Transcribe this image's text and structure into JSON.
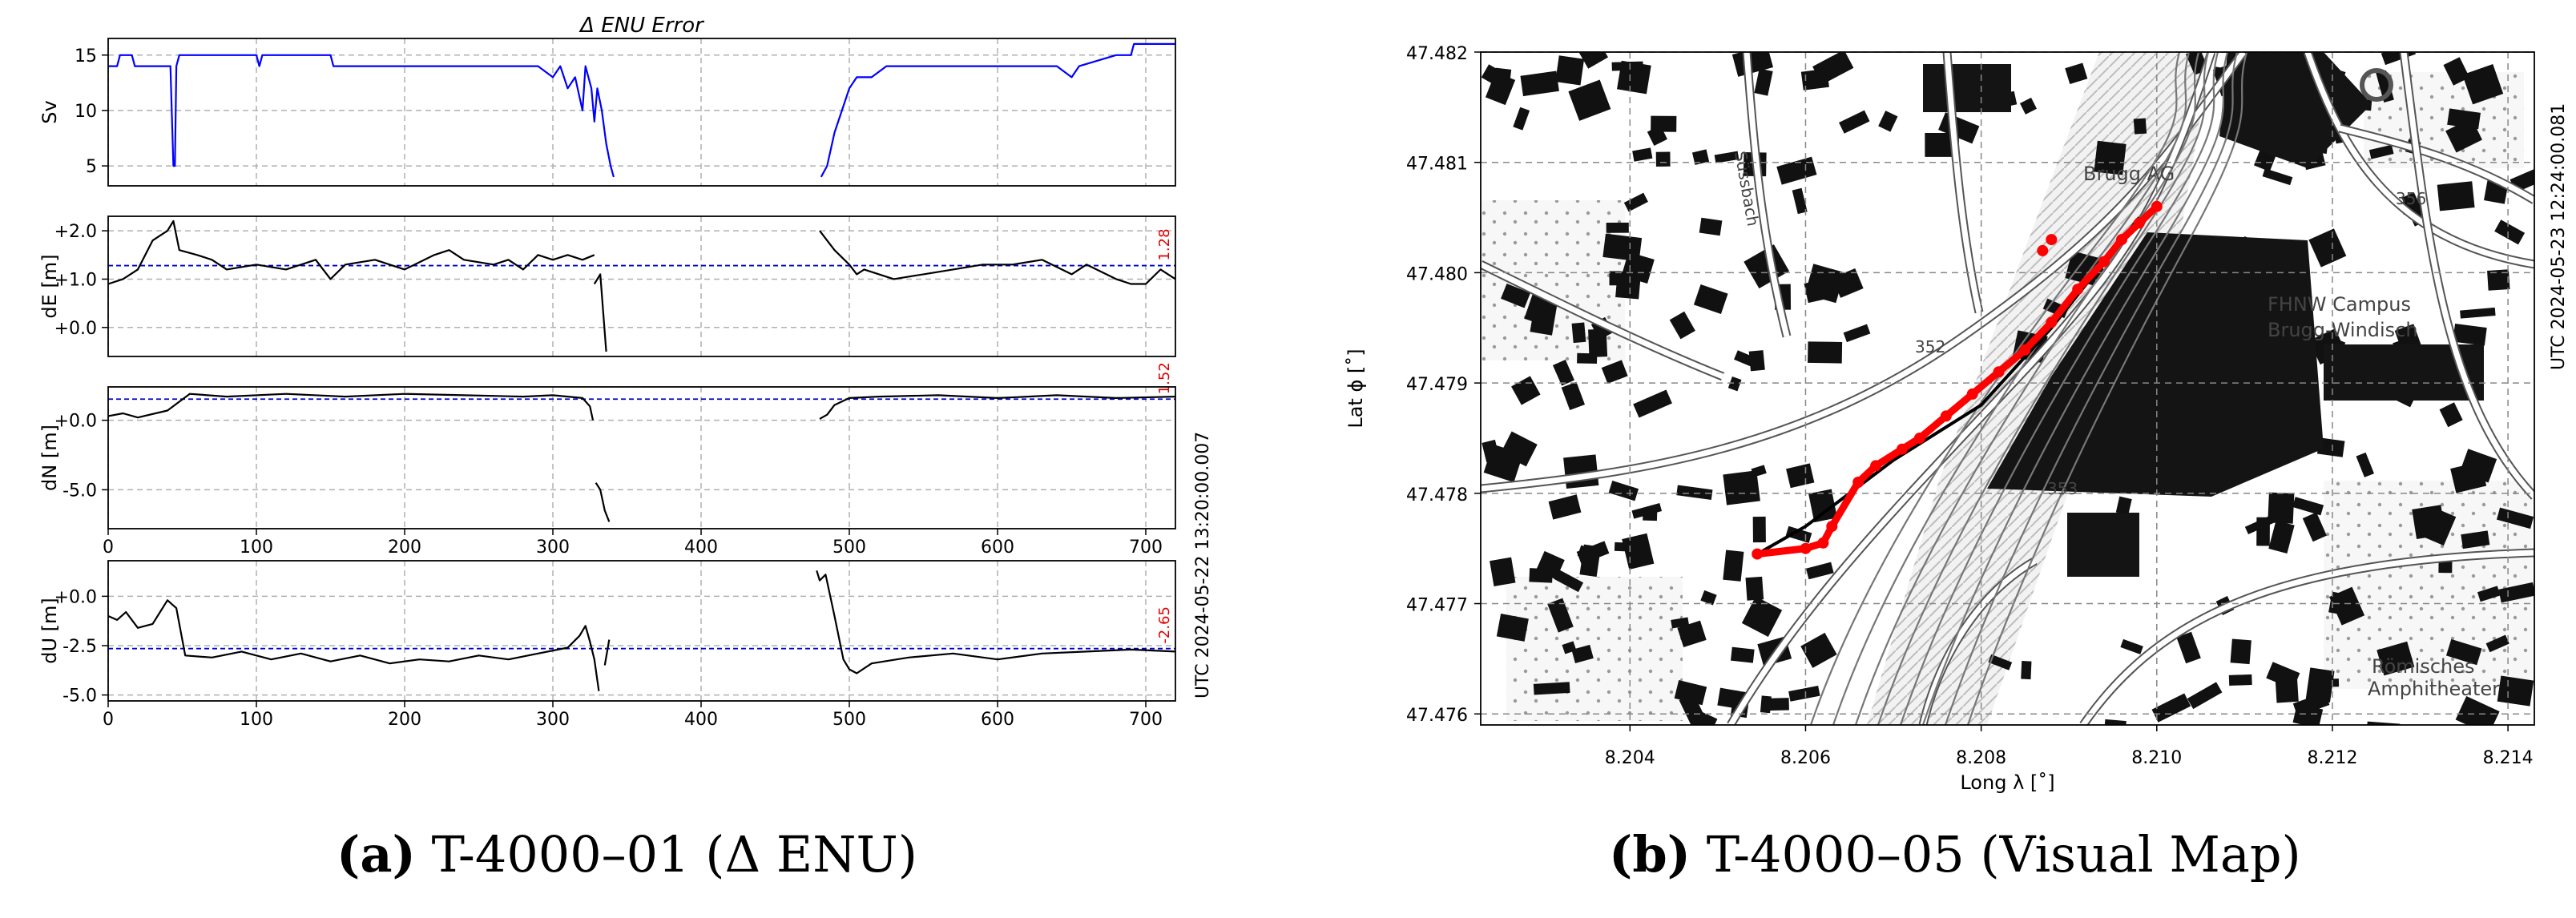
{
  "left_figure": {
    "title": "Δ ENU Error",
    "utc_label": "UTC 2024-05-22 13:20:00.007",
    "caption_label": "(a)",
    "caption_text": "T-4000–01 (Δ ENU)"
  },
  "right_figure": {
    "utc_label": "UTC 2024-05-23 12:24:00.081",
    "caption_label": "(b)",
    "caption_text": "T-4000–05 (Visual Map)",
    "map_labels": [
      "Brugg AG",
      "FHNW Campus",
      "Brugg-Windisch",
      "Römisches",
      "Amphitheater",
      "356",
      "352",
      "353",
      "Süssbach"
    ]
  },
  "chart_data": [
    {
      "type": "line",
      "ylabel": "Sv",
      "xlim": [
        0,
        720
      ],
      "ylim": [
        3.2,
        16.5
      ],
      "yticks": [
        "15",
        "10",
        "5"
      ],
      "ytick_values": [
        15,
        10,
        5
      ],
      "xticks": [],
      "grid": true,
      "color": "#0000ff",
      "segments": [
        [
          [
            0,
            14
          ],
          [
            6,
            14
          ],
          [
            8,
            15
          ],
          [
            16,
            15
          ],
          [
            18,
            14
          ],
          [
            42,
            14
          ],
          [
            44,
            5
          ],
          [
            45,
            5
          ],
          [
            46,
            14
          ],
          [
            48,
            15
          ],
          [
            100,
            15
          ],
          [
            102,
            14
          ],
          [
            104,
            15
          ],
          [
            150,
            15
          ],
          [
            152,
            14
          ],
          [
            200,
            14
          ],
          [
            230,
            14
          ],
          [
            250,
            14
          ],
          [
            270,
            14
          ],
          [
            290,
            14
          ],
          [
            300,
            13
          ],
          [
            305,
            14
          ],
          [
            310,
            12
          ],
          [
            315,
            13
          ],
          [
            320,
            10
          ],
          [
            322,
            14
          ],
          [
            326,
            12
          ],
          [
            328,
            9
          ],
          [
            330,
            12
          ],
          [
            333,
            10
          ],
          [
            336,
            7
          ],
          [
            339,
            5
          ],
          [
            341,
            4
          ]
        ],
        [
          [
            481,
            4
          ],
          [
            485,
            5
          ],
          [
            490,
            8
          ],
          [
            495,
            10
          ],
          [
            500,
            12
          ],
          [
            505,
            13
          ],
          [
            515,
            13
          ],
          [
            525,
            14
          ],
          [
            540,
            14
          ],
          [
            560,
            14
          ],
          [
            580,
            14
          ],
          [
            600,
            14
          ],
          [
            620,
            14
          ],
          [
            640,
            14
          ],
          [
            650,
            13
          ],
          [
            655,
            14
          ],
          [
            680,
            15
          ],
          [
            690,
            15
          ],
          [
            692,
            16
          ],
          [
            720,
            16
          ]
        ]
      ]
    },
    {
      "type": "line",
      "ylabel": "dE [m]",
      "xlim": [
        0,
        720
      ],
      "ylim": [
        -0.6,
        2.3
      ],
      "yticks": [
        "+2.0",
        "+1.0",
        "+0.0"
      ],
      "ytick_values": [
        2.0,
        1.0,
        0.0
      ],
      "mean_value": 1.28,
      "mean_label": "1.28",
      "grid": true,
      "color": "#000000",
      "segments": [
        [
          [
            0,
            0.9
          ],
          [
            10,
            1.0
          ],
          [
            20,
            1.2
          ],
          [
            30,
            1.8
          ],
          [
            40,
            2.0
          ],
          [
            44,
            2.2
          ],
          [
            48,
            1.6
          ],
          [
            60,
            1.5
          ],
          [
            70,
            1.4
          ],
          [
            80,
            1.2
          ],
          [
            100,
            1.3
          ],
          [
            120,
            1.2
          ],
          [
            140,
            1.4
          ],
          [
            150,
            1.0
          ],
          [
            160,
            1.3
          ],
          [
            180,
            1.4
          ],
          [
            200,
            1.2
          ],
          [
            220,
            1.5
          ],
          [
            230,
            1.6
          ],
          [
            240,
            1.4
          ],
          [
            260,
            1.3
          ],
          [
            270,
            1.4
          ],
          [
            280,
            1.2
          ],
          [
            290,
            1.5
          ],
          [
            300,
            1.4
          ],
          [
            310,
            1.5
          ],
          [
            320,
            1.4
          ],
          [
            328,
            1.5
          ]
        ],
        [
          [
            328,
            0.9
          ],
          [
            332,
            1.1
          ],
          [
            336,
            -0.5
          ]
        ],
        [
          [
            480,
            2.0
          ],
          [
            490,
            1.6
          ],
          [
            500,
            1.3
          ],
          [
            505,
            1.1
          ],
          [
            510,
            1.2
          ],
          [
            530,
            1.0
          ],
          [
            550,
            1.1
          ],
          [
            570,
            1.2
          ],
          [
            590,
            1.3
          ],
          [
            610,
            1.3
          ],
          [
            630,
            1.4
          ],
          [
            650,
            1.1
          ],
          [
            660,
            1.3
          ],
          [
            680,
            1.0
          ],
          [
            690,
            0.9
          ],
          [
            700,
            0.9
          ],
          [
            710,
            1.2
          ],
          [
            720,
            1.0
          ]
        ]
      ]
    },
    {
      "type": "line",
      "ylabel": "dN [m]",
      "xlim": [
        0,
        720
      ],
      "ylim": [
        -7.8,
        2.4
      ],
      "yticks": [
        "+0.0",
        "-5.0"
      ],
      "ytick_values": [
        0.0,
        -5.0
      ],
      "xticks": [
        "0",
        "100",
        "200",
        "300",
        "400",
        "500",
        "600",
        "700"
      ],
      "mean_value": 1.52,
      "mean_label": "1.52",
      "grid": true,
      "color": "#000000",
      "segments": [
        [
          [
            0,
            0.3
          ],
          [
            10,
            0.5
          ],
          [
            20,
            0.2
          ],
          [
            40,
            0.7
          ],
          [
            55,
            1.9
          ],
          [
            80,
            1.7
          ],
          [
            120,
            1.9
          ],
          [
            160,
            1.7
          ],
          [
            200,
            1.9
          ],
          [
            240,
            1.8
          ],
          [
            280,
            1.7
          ],
          [
            300,
            1.8
          ],
          [
            320,
            1.6
          ],
          [
            325,
            1.0
          ],
          [
            327,
            0.0
          ]
        ],
        [
          [
            329,
            -4.5
          ],
          [
            332,
            -5.0
          ],
          [
            335,
            -6.5
          ],
          [
            338,
            -7.3
          ]
        ],
        [
          [
            480,
            0.1
          ],
          [
            485,
            0.4
          ],
          [
            490,
            1.1
          ],
          [
            500,
            1.6
          ],
          [
            520,
            1.7
          ],
          [
            560,
            1.8
          ],
          [
            600,
            1.6
          ],
          [
            640,
            1.8
          ],
          [
            680,
            1.6
          ],
          [
            720,
            1.7
          ]
        ]
      ]
    },
    {
      "type": "line",
      "ylabel": "dU [m]",
      "xlim": [
        0,
        720
      ],
      "ylim": [
        -5.3,
        1.8
      ],
      "yticks": [
        "+0.0",
        "-2.5",
        "-5.0"
      ],
      "ytick_values": [
        0.0,
        -2.5,
        -5.0
      ],
      "xticks": [
        "0",
        "100",
        "200",
        "300",
        "400",
        "500",
        "600",
        "700"
      ],
      "mean_value": -2.65,
      "mean_label": "-2.65",
      "grid": true,
      "color": "#000000",
      "segments": [
        [
          [
            0,
            -1.0
          ],
          [
            6,
            -1.2
          ],
          [
            12,
            -0.8
          ],
          [
            20,
            -1.6
          ],
          [
            30,
            -1.4
          ],
          [
            40,
            -0.2
          ],
          [
            46,
            -0.6
          ],
          [
            52,
            -3.0
          ],
          [
            70,
            -3.1
          ],
          [
            90,
            -2.8
          ],
          [
            110,
            -3.2
          ],
          [
            130,
            -2.9
          ],
          [
            150,
            -3.3
          ],
          [
            170,
            -3.0
          ],
          [
            190,
            -3.4
          ],
          [
            210,
            -3.2
          ],
          [
            230,
            -3.3
          ],
          [
            250,
            -3.0
          ],
          [
            270,
            -3.2
          ],
          [
            290,
            -2.9
          ],
          [
            310,
            -2.6
          ],
          [
            318,
            -2.0
          ],
          [
            322,
            -1.5
          ],
          [
            325,
            -2.3
          ],
          [
            328,
            -3.2
          ],
          [
            331,
            -4.8
          ]
        ],
        [
          [
            335,
            -3.5
          ],
          [
            338,
            -2.2
          ]
        ],
        [
          [
            478,
            1.3
          ],
          [
            480,
            0.8
          ],
          [
            484,
            1.1
          ],
          [
            490,
            -1.0
          ],
          [
            496,
            -3.2
          ],
          [
            500,
            -3.7
          ],
          [
            505,
            -3.9
          ],
          [
            515,
            -3.4
          ],
          [
            540,
            -3.1
          ],
          [
            570,
            -2.9
          ],
          [
            600,
            -3.2
          ],
          [
            630,
            -2.9
          ],
          [
            660,
            -2.8
          ],
          [
            690,
            -2.7
          ],
          [
            720,
            -2.8
          ]
        ]
      ]
    },
    {
      "type": "scatter",
      "xlabel": "Long λ [˚]",
      "ylabel": "Lat ϕ [˚]",
      "xlim": [
        8.2023,
        8.2143
      ],
      "ylim": [
        47.4759,
        47.482
      ],
      "xticks": [
        "8.204",
        "8.206",
        "8.208",
        "8.210",
        "8.212",
        "8.214"
      ],
      "xtick_values": [
        8.204,
        8.206,
        8.208,
        8.21,
        8.212,
        8.214
      ],
      "yticks": [
        "47.482",
        "47.481",
        "47.480",
        "47.479",
        "47.478",
        "47.477",
        "47.476"
      ],
      "ytick_values": [
        47.482,
        47.481,
        47.48,
        47.479,
        47.478,
        47.477,
        47.476
      ],
      "series": [
        {
          "color": "#000000",
          "points": [
            [
              8.20545,
              47.47745
            ],
            [
              8.206,
              47.4777
            ],
            [
              8.207,
              47.4783
            ],
            [
              8.208,
              47.4788
            ],
            [
              8.2088,
              47.4795
            ],
            [
              8.2094,
              47.4801
            ],
            [
              8.2098,
              47.4805
            ]
          ]
        },
        {
          "color": "#ff0000",
          "points": [
            [
              8.20545,
              47.47745
            ],
            [
              8.206,
              47.4775
            ],
            [
              8.2062,
              47.47755
            ],
            [
              8.2063,
              47.4777
            ],
            [
              8.2066,
              47.4781
            ],
            [
              8.2068,
              47.47825
            ],
            [
              8.2071,
              47.4784
            ],
            [
              8.2073,
              47.4785
            ],
            [
              8.2076,
              47.4787
            ],
            [
              8.2079,
              47.4789
            ],
            [
              8.2082,
              47.4791
            ],
            [
              8.2085,
              47.4793
            ],
            [
              8.2088,
              47.47955
            ],
            [
              8.2091,
              47.47985
            ],
            [
              8.2094,
              47.4801
            ],
            [
              8.2096,
              47.4803
            ],
            [
              8.2098,
              47.48045
            ],
            [
              8.21,
              47.4806
            ],
            [
              8.2088,
              47.4803
            ],
            [
              8.2087,
              47.4802
            ]
          ]
        }
      ]
    }
  ]
}
